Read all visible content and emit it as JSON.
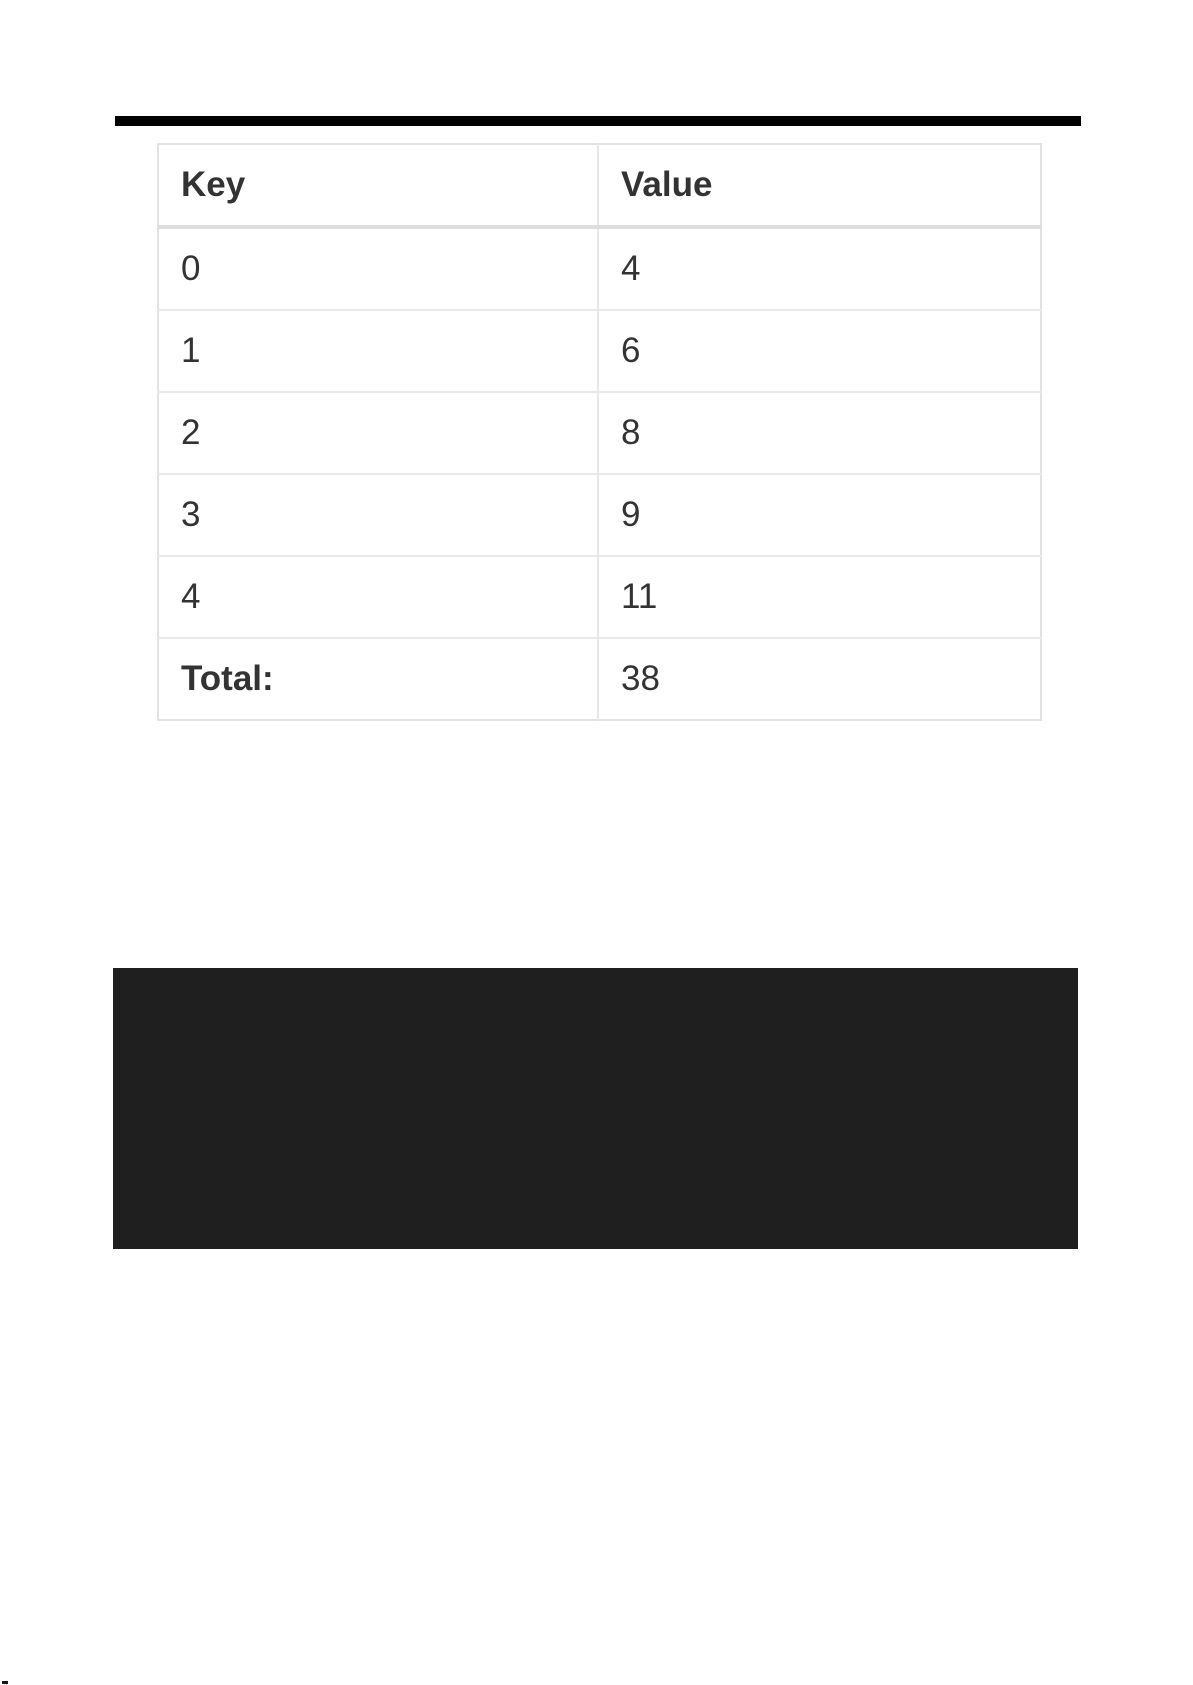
{
  "table": {
    "columns": [
      "Key",
      "Value"
    ],
    "rows": [
      {
        "key": "0",
        "value": "4"
      },
      {
        "key": "1",
        "value": "6"
      },
      {
        "key": "2",
        "value": "8"
      },
      {
        "key": "3",
        "value": "9"
      },
      {
        "key": "4",
        "value": "11"
      }
    ],
    "total": {
      "label": "Total:",
      "value": "38"
    }
  },
  "colors": {
    "divider": "#000000",
    "panel_background": "#1e1f1e",
    "table_border": "#e2e2e2",
    "text": "#333333"
  }
}
